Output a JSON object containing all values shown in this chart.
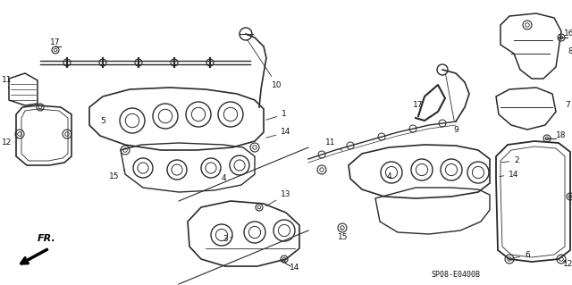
{
  "bg_color": "#ffffff",
  "diagram_code": "SP08-E0400B",
  "fig_width": 6.4,
  "fig_height": 3.19,
  "dpi": 100,
  "line_color": "#2a2a2a",
  "text_color": "#111111",
  "font_size": 6.5
}
